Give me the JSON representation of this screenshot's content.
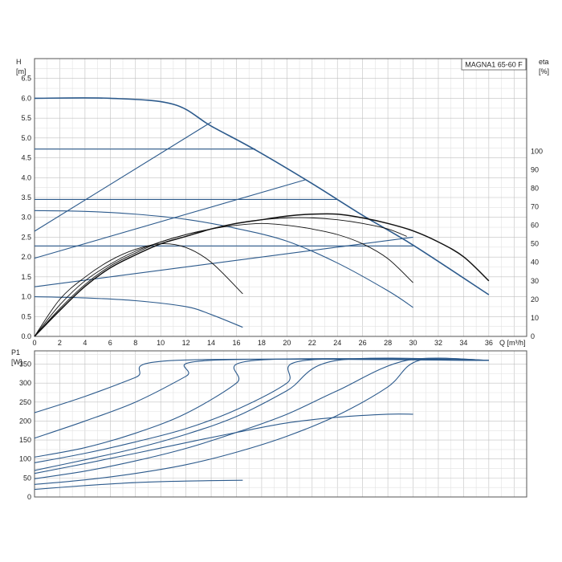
{
  "model_label": "MAGNA1 65-60 F",
  "colors": {
    "curve": "#2c5a8c",
    "eff": "#111111",
    "grid": "#c8c8c8",
    "frame": "#555555"
  },
  "chart_data": [
    {
      "type": "line",
      "name": "head",
      "ylabel_lines": [
        "H",
        "[m]"
      ],
      "y2label_lines": [
        "eta",
        "[%]"
      ],
      "xlabel": "Q [m³/h]",
      "xlim": [
        0,
        39
      ],
      "ylim": [
        0,
        7.0
      ],
      "y2lim": [
        0,
        150
      ],
      "grid": true,
      "x_ticks": [
        0,
        2,
        4,
        6,
        8,
        10,
        12,
        14,
        16,
        18,
        20,
        22,
        24,
        26,
        28,
        30,
        32,
        34,
        36
      ],
      "y_ticks": [
        0.0,
        0.5,
        1.0,
        1.5,
        2.0,
        2.5,
        3.0,
        3.5,
        4.0,
        4.5,
        5.0,
        5.5,
        6.0,
        6.5
      ],
      "y2_ticks": [
        0,
        10,
        20,
        30,
        40,
        50,
        60,
        70,
        80,
        90,
        100
      ],
      "head_curves": [
        {
          "x": [
            0,
            6,
            11,
            14,
            17.5,
            22,
            26,
            30,
            36
          ],
          "y": [
            6.0,
            6.0,
            5.85,
            5.3,
            4.7,
            3.85,
            3.05,
            2.3,
            1.05
          ]
        },
        {
          "x": [
            0,
            17.5
          ],
          "y": [
            4.72,
            4.72
          ]
        },
        {
          "x": [
            0,
            24
          ],
          "y": [
            3.45,
            3.45
          ]
        },
        {
          "x": [
            0,
            30
          ],
          "y": [
            2.28,
            2.28
          ]
        },
        {
          "x": [
            0,
            4,
            8,
            12,
            16,
            20,
            24,
            28,
            30
          ],
          "y": [
            3.17,
            3.15,
            3.08,
            2.95,
            2.72,
            2.4,
            1.85,
            1.15,
            0.73
          ]
        },
        {
          "x": [
            0,
            4,
            8,
            12,
            14,
            16.5
          ],
          "y": [
            1.0,
            0.97,
            0.9,
            0.75,
            0.55,
            0.23
          ]
        },
        {
          "x": [
            0,
            14
          ],
          "y": [
            2.65,
            5.4
          ]
        },
        {
          "x": [
            0,
            21.5
          ],
          "y": [
            1.97,
            3.95
          ]
        },
        {
          "x": [
            0,
            30
          ],
          "y": [
            1.25,
            2.5
          ]
        }
      ],
      "efficiency_curves": [
        {
          "x": [
            0,
            2,
            4,
            6,
            8,
            10,
            12,
            14,
            16.5
          ],
          "eta": [
            0,
            20,
            32,
            41,
            47,
            50,
            48,
            40,
            23
          ]
        },
        {
          "x": [
            0,
            2,
            4,
            6,
            8,
            10,
            12,
            14,
            16,
            18,
            20,
            22,
            24,
            26,
            28,
            30
          ],
          "eta": [
            0,
            17,
            30,
            39,
            46,
            51,
            55,
            58,
            60,
            61,
            60,
            58,
            55,
            50,
            42,
            29
          ]
        },
        {
          "x": [
            0,
            2,
            4,
            6,
            8,
            10,
            12,
            14,
            16,
            18,
            20,
            22,
            24,
            26,
            28,
            29.5
          ],
          "eta": [
            0,
            15,
            28,
            38,
            45,
            51,
            55,
            58,
            61,
            63,
            64,
            64,
            63,
            61,
            58,
            54
          ]
        },
        {
          "x": [
            0,
            2,
            4,
            6,
            8,
            10,
            12,
            14,
            16,
            18,
            20,
            22,
            24,
            26,
            28,
            30,
            32,
            34,
            36
          ],
          "eta": [
            0,
            14,
            27,
            37,
            44,
            50,
            54,
            58,
            61,
            63,
            65,
            66,
            66,
            64,
            61,
            57,
            51,
            43,
            30
          ]
        }
      ]
    },
    {
      "type": "line",
      "name": "power",
      "ylabel_lines": [
        "P1",
        "[W]"
      ],
      "xlim": [
        0,
        39
      ],
      "ylim": [
        0,
        385
      ],
      "grid": true,
      "y_ticks": [
        0,
        50,
        100,
        150,
        200,
        250,
        300,
        350
      ],
      "power_curves": [
        {
          "x": [
            0,
            4,
            8,
            11.2,
            36
          ],
          "y": [
            222,
            265,
            315,
            360,
            360
          ]
        },
        {
          "x": [
            0,
            4,
            8,
            12,
            14,
            36
          ],
          "y": [
            155,
            200,
            250,
            318,
            360,
            360
          ]
        },
        {
          "x": [
            0,
            4,
            8,
            12,
            16,
            17.5,
            36
          ],
          "y": [
            105,
            130,
            168,
            220,
            300,
            360,
            360
          ]
        },
        {
          "x": [
            0,
            4,
            8,
            12,
            16,
            20,
            21.5,
            36
          ],
          "y": [
            90,
            115,
            145,
            180,
            230,
            300,
            360,
            360
          ]
        },
        {
          "x": [
            0,
            4,
            8,
            12,
            16,
            20,
            24,
            36
          ],
          "y": [
            70,
            98,
            128,
            165,
            212,
            280,
            360,
            360
          ]
        },
        {
          "x": [
            0,
            4,
            8,
            12,
            16,
            20,
            24,
            29.5,
            36
          ],
          "y": [
            48,
            68,
            95,
            128,
            170,
            218,
            280,
            360,
            360
          ]
        },
        {
          "x": [
            0,
            4,
            8,
            12,
            16,
            20,
            24,
            28,
            30.5,
            36
          ],
          "y": [
            33,
            45,
            62,
            85,
            118,
            160,
            215,
            290,
            360,
            360
          ]
        },
        {
          "x": [
            0,
            4,
            8,
            12,
            16,
            20,
            24,
            28,
            30
          ],
          "y": [
            62,
            88,
            115,
            143,
            170,
            195,
            210,
            218,
            218
          ]
        },
        {
          "x": [
            0,
            4,
            8,
            12,
            16.5
          ],
          "y": [
            20,
            30,
            38,
            42,
            44
          ]
        }
      ]
    }
  ]
}
